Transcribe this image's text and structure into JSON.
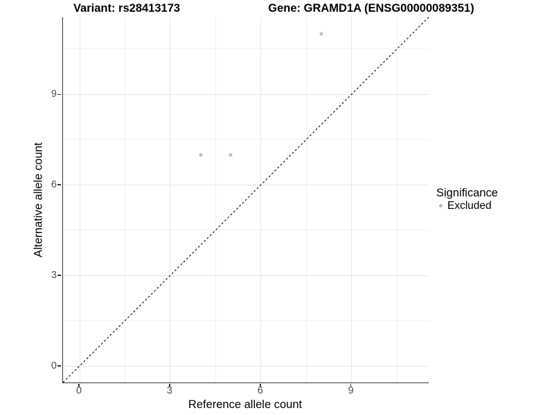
{
  "chart_data": {
    "type": "scatter",
    "title_left": "Variant: rs28413173",
    "title_right": "Gene: GRAMD1A (ENSG00000089351)",
    "xlabel": "Reference allele count",
    "ylabel": "Alternative allele count",
    "xlim": [
      -0.55,
      11.55
    ],
    "ylim": [
      -0.55,
      11.55
    ],
    "x_ticks": [
      0,
      3,
      6,
      9
    ],
    "y_ticks": [
      0,
      3,
      6,
      9
    ],
    "x_minor_ticks": [
      1.5,
      4.5,
      7.5,
      10.5
    ],
    "y_minor_ticks": [
      1.5,
      4.5,
      7.5,
      10.5
    ],
    "grid": true,
    "series": [
      {
        "name": "Excluded",
        "color": "#bebebe",
        "points": [
          {
            "x": 4,
            "y": 7
          },
          {
            "x": 5,
            "y": 7
          },
          {
            "x": 8,
            "y": 11
          }
        ]
      }
    ],
    "identity_line": {
      "style": "dashed",
      "color": "#000000",
      "from": [
        -0.55,
        -0.55
      ],
      "to": [
        11.55,
        11.55
      ]
    },
    "legend": {
      "title": "Significance",
      "position": "right",
      "items": [
        {
          "label": "Excluded",
          "color": "#bebebe"
        }
      ]
    }
  },
  "colors": {
    "background": "#ffffff",
    "grid_major": "#e7e7e7",
    "grid_minor": "#f1f1f1",
    "axis_line": "#333333",
    "tick_label": "#4d4d4d",
    "point": "#bebebe",
    "text": "#000000"
  }
}
